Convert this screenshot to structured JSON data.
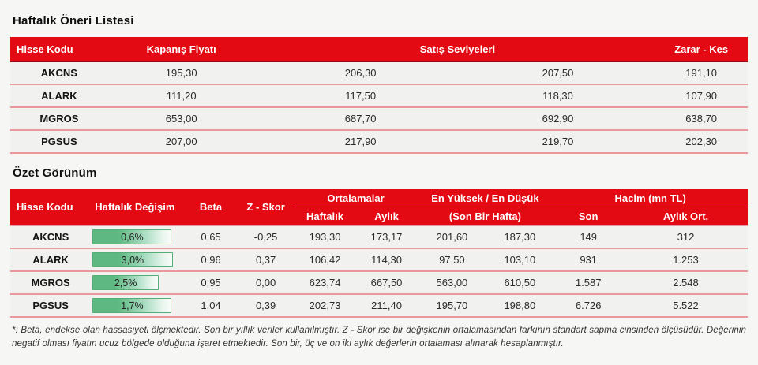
{
  "colors": {
    "header_red": "#e30a13",
    "header_red_dark": "#9c040b",
    "row_separator_pink": "#eb989d",
    "row_bg": "#f1f1ef",
    "bar_green": "#5db981",
    "bar_border_green": "#54ae76",
    "page_bg": "#f6f6f5"
  },
  "section1": {
    "title": "Haftalık Öneri Listesi",
    "table": {
      "headers": {
        "code": "Hisse Kodu",
        "close": "Kapanış Fiyatı",
        "sell_levels": "Satış Seviyeleri",
        "stop_loss": "Zarar - Kes"
      },
      "rows": [
        {
          "code": "AKCNS",
          "close": "195,30",
          "sell1": "206,30",
          "sell2": "207,50",
          "stop": "191,10"
        },
        {
          "code": "ALARK",
          "close": "111,20",
          "sell1": "117,50",
          "sell2": "118,30",
          "stop": "107,90"
        },
        {
          "code": "MGROS",
          "close": "653,00",
          "sell1": "687,70",
          "sell2": "692,90",
          "stop": "638,70"
        },
        {
          "code": "PGSUS",
          "close": "207,00",
          "sell1": "217,90",
          "sell2": "219,70",
          "stop": "202,30"
        }
      ]
    }
  },
  "section2": {
    "title": "Özet Görünüm",
    "table": {
      "headers": {
        "code": "Hisse Kodu",
        "change": "Haftalık Değişim",
        "beta": "Beta",
        "zscore": "Z - Skor",
        "grp_averages": "Ortalamalar",
        "grp_high_low": "En Yüksek  /  En Düşük",
        "grp_volume": "Hacim (mn TL)",
        "sub_weekly": "Haftalık",
        "sub_monthly": "Aylık",
        "sub_last_week": "(Son Bir Hafta)",
        "sub_last": "Son",
        "sub_monthly_avg": "Aylık Ort."
      },
      "rows": [
        {
          "code": "AKCNS",
          "change": "0,6%",
          "bar": 91,
          "beta": "0,65",
          "zscore": "-0,25",
          "avg_weekly": "193,30",
          "avg_monthly": "173,17",
          "high": "201,60",
          "low": "187,30",
          "vol_last": "149",
          "vol_monthly_avg": "312"
        },
        {
          "code": "ALARK",
          "change": "3,0%",
          "bar": 92,
          "beta": "0,96",
          "zscore": "0,37",
          "avg_weekly": "106,42",
          "avg_monthly": "114,30",
          "high": "97,50",
          "low": "103,10",
          "vol_last": "931",
          "vol_monthly_avg": "1.253"
        },
        {
          "code": "MGROS",
          "change": "2,5%",
          "bar": 76,
          "beta": "0,95",
          "zscore": "0,00",
          "avg_weekly": "623,74",
          "avg_monthly": "667,50",
          "high": "563,00",
          "low": "610,50",
          "vol_last": "1.587",
          "vol_monthly_avg": "2.548"
        },
        {
          "code": "PGSUS",
          "change": "1,7%",
          "bar": 91,
          "beta": "1,04",
          "zscore": "0,39",
          "avg_weekly": "202,73",
          "avg_monthly": "211,40",
          "high": "195,70",
          "low": "198,80",
          "vol_last": "6.726",
          "vol_monthly_avg": "5.522"
        }
      ]
    }
  },
  "footnote": {
    "text": "*: Beta, endekse olan hassasiyeti ölçmektedir. Son bir yıllık veriler kullanılmıştır. Z - Skor ise bir değişkenin ortalamasından farkının standart sapma cinsinden ölçüsüdür. Değerinin negatif olması fiyatın ucuz bölgede olduğuna işaret etmektedir. Son bir, üç ve on iki aylık değerlerin ortalaması alınarak hesaplanmıştır."
  }
}
